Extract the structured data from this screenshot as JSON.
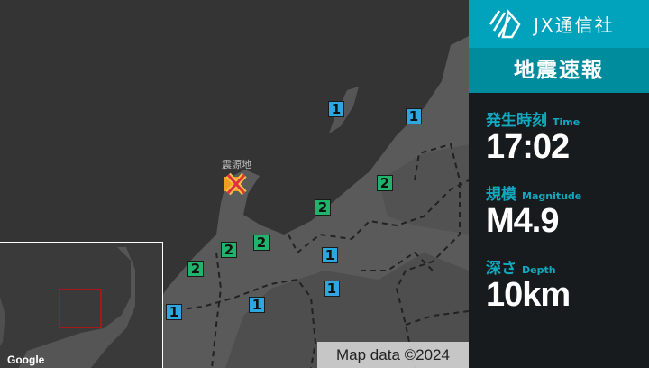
{
  "map": {
    "epicenter_label": "震源地",
    "markers": [
      {
        "intensity": "1"
      },
      {
        "intensity": "1"
      },
      {
        "intensity": "2"
      },
      {
        "intensity": "2"
      },
      {
        "intensity": "2"
      },
      {
        "intensity": "2"
      },
      {
        "intensity": "2"
      },
      {
        "intensity": "1"
      },
      {
        "intensity": "1"
      },
      {
        "intensity": "1"
      },
      {
        "intensity": "1"
      }
    ],
    "intensity_colors": {
      "1": "#2ea6e0",
      "2": "#1fb36b"
    },
    "attribution": "Map data ©2024",
    "minimap_logo": "Google"
  },
  "panel": {
    "brand": "JX通信社",
    "title": "地震速報",
    "time": {
      "label": "発生時刻",
      "sub": "Time",
      "value": "17:02"
    },
    "magnitude": {
      "label": "規模",
      "sub": "Magnitude",
      "value": "M4.9"
    },
    "depth": {
      "label": "深さ",
      "sub": "Depth",
      "value": "10km"
    }
  }
}
